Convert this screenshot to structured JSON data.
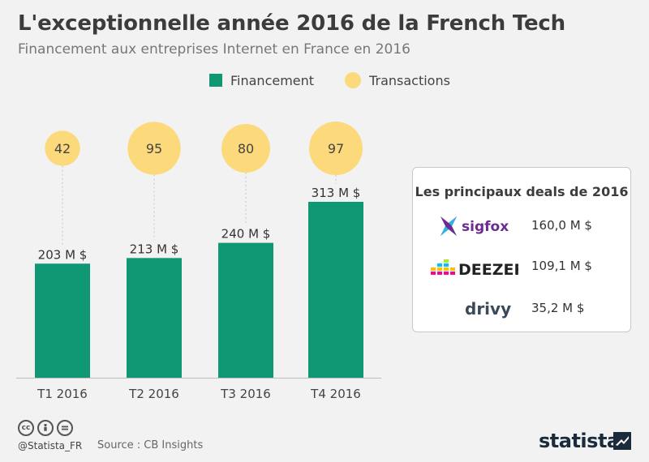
{
  "title": "L'exceptionnelle année 2016 de la French Tech",
  "subtitle": "Financement aux entreprises Internet en France en 2016",
  "legend": {
    "financement": "Financement",
    "transactions": "Transactions"
  },
  "colors": {
    "bar": "#0f9873",
    "bubble": "#fcd97a",
    "background": "#f2f2f2"
  },
  "chart_data": {
    "type": "bar",
    "title": "L'exceptionnelle année 2016 de la French Tech",
    "subtitle": "Financement aux entreprises Internet en France en 2016",
    "categories": [
      "T1 2016",
      "T2 2016",
      "T3 2016",
      "T4 2016"
    ],
    "series": [
      {
        "name": "Financement",
        "values": [
          203,
          213,
          240,
          313
        ],
        "labels": [
          "203 M $",
          "213 M $",
          "240 M $",
          "313 M $"
        ],
        "type": "bar"
      },
      {
        "name": "Transactions",
        "values": [
          42,
          95,
          80,
          97
        ],
        "labels": [
          "42",
          "95",
          "80",
          "97"
        ],
        "type": "bubble"
      }
    ],
    "ylim": [
      0,
      313
    ],
    "grid": false,
    "legend_position": "top"
  },
  "deals": {
    "title": "Les principaux deals de 2016",
    "items": [
      {
        "name": "sigfox",
        "logo_text": "sigfox",
        "amount": "160,0 M $"
      },
      {
        "name": "deezer",
        "logo_text": "DEEZER",
        "amount": "109,1 M $"
      },
      {
        "name": "drivy",
        "logo_text": "drivy",
        "amount": "35,2 M $"
      }
    ]
  },
  "footer": {
    "handle": "@Statista_FR",
    "source": "Source : CB Insights",
    "brand": "statista",
    "cc_icons": [
      "cc",
      "by",
      "nd"
    ]
  }
}
